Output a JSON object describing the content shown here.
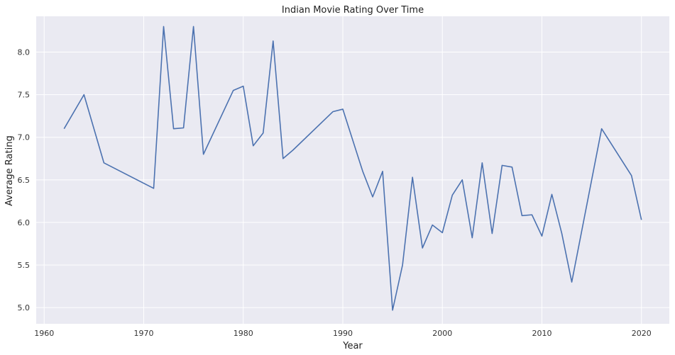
{
  "chart_data": {
    "type": "line",
    "title": "Indian Movie Rating Over Time",
    "xlabel": "Year",
    "ylabel": "Average Rating",
    "xlim": [
      1959.2,
      2022.8
    ],
    "ylim": [
      4.81,
      8.42
    ],
    "xticks": [
      1960,
      1970,
      1980,
      1990,
      2000,
      2010,
      2020
    ],
    "yticks": [
      5.0,
      5.5,
      6.0,
      6.5,
      7.0,
      7.5,
      8.0
    ],
    "xtick_labels": [
      "1960",
      "1970",
      "1980",
      "1990",
      "2000",
      "2010",
      "2020"
    ],
    "ytick_labels": [
      "5.0",
      "5.5",
      "6.0",
      "6.5",
      "7.0",
      "7.5",
      "8.0"
    ],
    "grid": true,
    "series": [
      {
        "color": "#4c72b0",
        "x": [
          1962,
          1964,
          1966,
          1971,
          1972,
          1973,
          1974,
          1975,
          1976,
          1979,
          1980,
          1981,
          1982,
          1983,
          1984,
          1985,
          1989,
          1990,
          1992,
          1993,
          1994,
          1995,
          1996,
          1997,
          1998,
          1999,
          2000,
          2001,
          2002,
          2003,
          2004,
          2005,
          2006,
          2007,
          2008,
          2009,
          2010,
          2011,
          2012,
          2013,
          2016,
          2019,
          2020
        ],
        "y": [
          7.1,
          7.5,
          6.7,
          6.4,
          8.3,
          7.1,
          7.11,
          8.3,
          6.8,
          7.55,
          7.6,
          6.9,
          7.05,
          8.13,
          6.75,
          6.85,
          7.3,
          7.33,
          6.6,
          6.3,
          6.6,
          4.97,
          5.5,
          6.53,
          5.7,
          5.97,
          5.88,
          6.32,
          6.5,
          5.82,
          6.7,
          5.87,
          6.67,
          6.65,
          6.08,
          6.09,
          5.84,
          6.33,
          5.87,
          5.3,
          7.1,
          6.55,
          6.03
        ]
      }
    ]
  },
  "colors": {
    "plot_background": "#eaeaf2",
    "grid": "#ffffff",
    "line": "#4c72b0"
  }
}
